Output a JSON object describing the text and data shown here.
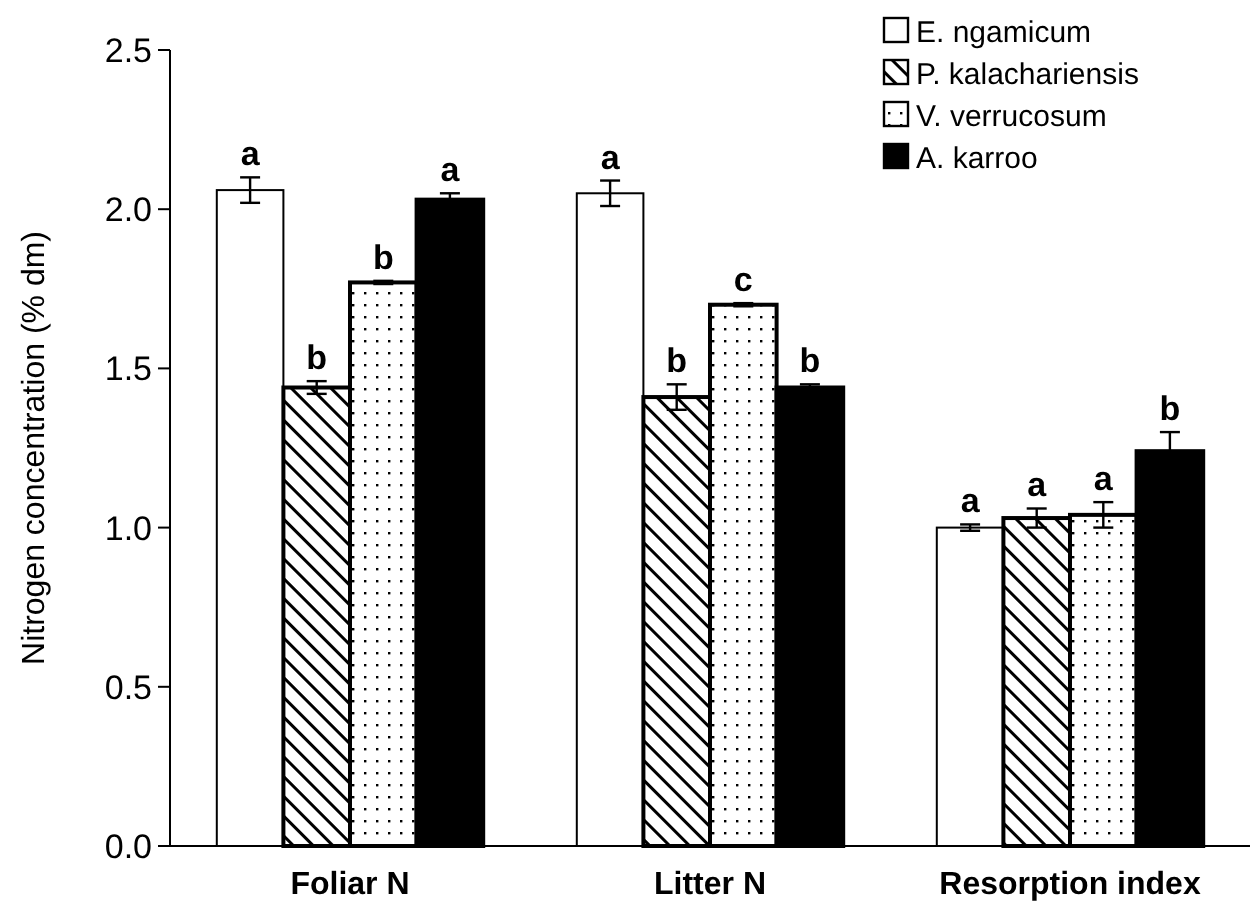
{
  "chart_data": {
    "type": "bar",
    "ylabel": "Nitrogen concentration  (% dm)",
    "categories": [
      "Foliar N",
      "Litter N",
      "Resorption index"
    ],
    "series": [
      {
        "name": "E. ngamicum",
        "color": "#ffffff",
        "values": [
          2.06,
          2.05,
          1.0
        ],
        "errors": [
          0.04,
          0.04,
          0.01
        ],
        "value_labels": [
          "a",
          "a",
          "a"
        ]
      },
      {
        "name": "P. kalachariensis",
        "color": "#000000",
        "values": [
          1.44,
          1.41,
          1.03
        ],
        "errors": [
          0.02,
          0.04,
          0.03
        ],
        "value_labels": [
          "b",
          "b",
          "a"
        ]
      },
      {
        "name": "V. verrucosum",
        "color": "#000000",
        "values": [
          1.77,
          1.7,
          1.04
        ],
        "errors": [
          0.005,
          0.005,
          0.04
        ],
        "value_labels": [
          "b",
          "c",
          "a"
        ]
      },
      {
        "name": "A. karroo",
        "color": "#000000",
        "values": [
          2.03,
          1.44,
          1.24
        ],
        "errors": [
          0.02,
          0.01,
          0.06
        ],
        "value_labels": [
          "a",
          "b",
          "b"
        ]
      }
    ],
    "ylim": [
      0,
      2.5
    ],
    "yticks": [
      {
        "value": 0,
        "label": "0.0"
      },
      {
        "value": 0.5,
        "label": "0.5"
      },
      {
        "value": 1,
        "label": "1.0"
      },
      {
        "value": 1.5,
        "label": "1.5"
      },
      {
        "value": 2,
        "label": "2.0"
      },
      {
        "value": 2.5,
        "label": "2.5"
      }
    ],
    "legend": "top right",
    "grid": false
  }
}
